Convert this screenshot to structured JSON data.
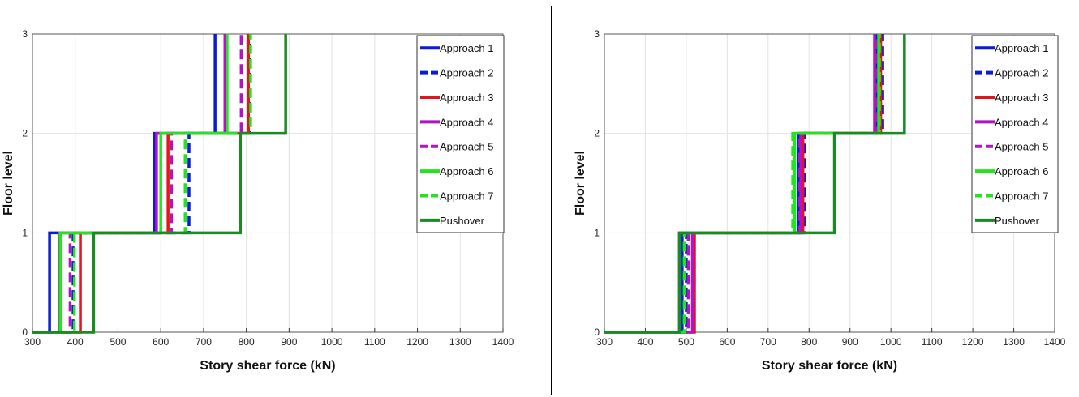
{
  "chart_data": [
    {
      "type": "line",
      "step": "vertical",
      "xlabel": "Story shear force (kN)",
      "ylabel": "Floor level",
      "xlim": [
        300,
        1400
      ],
      "ylim": [
        0,
        3
      ],
      "xticks": [
        "300",
        "400",
        "500",
        "600",
        "700",
        "800",
        "900",
        "1000",
        "1100",
        "1200",
        "1300",
        "1400"
      ],
      "yticks": [
        "0",
        "1",
        "2",
        "3"
      ],
      "grid": true,
      "legend_position": "top-right",
      "series": [
        {
          "name": "Approach 1",
          "color": "#0a1ad6",
          "dash": "solid",
          "shear": [
            340,
            585,
            727
          ]
        },
        {
          "name": "Approach 2",
          "color": "#0a1ad6",
          "dash": "dashed",
          "shear": [
            395,
            666,
            808
          ]
        },
        {
          "name": "Approach 3",
          "color": "#e3141b",
          "dash": "solid",
          "shear": [
            412,
            617,
            805
          ]
        },
        {
          "name": "Approach 4",
          "color": "#b214c4",
          "dash": "solid",
          "shear": [
            362,
            590,
            750
          ]
        },
        {
          "name": "Approach 5",
          "color": "#b214c4",
          "dash": "dashed",
          "shear": [
            388,
            625,
            788
          ]
        },
        {
          "name": "Approach 6",
          "color": "#22e51e",
          "dash": "solid",
          "shear": [
            365,
            600,
            755
          ]
        },
        {
          "name": "Approach 7",
          "color": "#22e51e",
          "dash": "dashed",
          "shear": [
            398,
            657,
            810
          ]
        },
        {
          "name": "Pushover",
          "color": "#1a8a22",
          "dash": "solid",
          "shear": [
            443,
            786,
            892
          ]
        }
      ]
    },
    {
      "type": "line",
      "step": "vertical",
      "xlabel": "Story shear force (kN)",
      "ylabel": "Floor level",
      "xlim": [
        300,
        1400
      ],
      "ylim": [
        0,
        3
      ],
      "xticks": [
        "300",
        "400",
        "500",
        "600",
        "700",
        "800",
        "900",
        "1000",
        "1100",
        "1200",
        "1300",
        "1400"
      ],
      "yticks": [
        "0",
        "1",
        "2",
        "3"
      ],
      "grid": true,
      "legend_position": "top-right",
      "series": [
        {
          "name": "Approach 1",
          "color": "#0a1ad6",
          "dash": "solid",
          "shear": [
            490,
            775,
            965
          ]
        },
        {
          "name": "Approach 2",
          "color": "#0a1ad6",
          "dash": "dashed",
          "shear": [
            500,
            790,
            980
          ]
        },
        {
          "name": "Approach 3",
          "color": "#e3141b",
          "dash": "solid",
          "shear": [
            520,
            785,
            975
          ]
        },
        {
          "name": "Approach 4",
          "color": "#b214c4",
          "dash": "solid",
          "shear": [
            515,
            780,
            960
          ]
        },
        {
          "name": "Approach 5",
          "color": "#b214c4",
          "dash": "dashed",
          "shear": [
            505,
            777,
            963
          ]
        },
        {
          "name": "Approach 6",
          "color": "#22e51e",
          "dash": "solid",
          "shear": [
            485,
            765,
            970
          ]
        },
        {
          "name": "Approach 7",
          "color": "#22e51e",
          "dash": "dashed",
          "shear": [
            495,
            760,
            972
          ]
        },
        {
          "name": "Pushover",
          "color": "#1a8a22",
          "dash": "solid",
          "shear": [
            483,
            862,
            1033
          ]
        }
      ]
    }
  ],
  "colors": {
    "divider": "#000000",
    "grid": "#e3e3e3",
    "axis": "#000000"
  }
}
